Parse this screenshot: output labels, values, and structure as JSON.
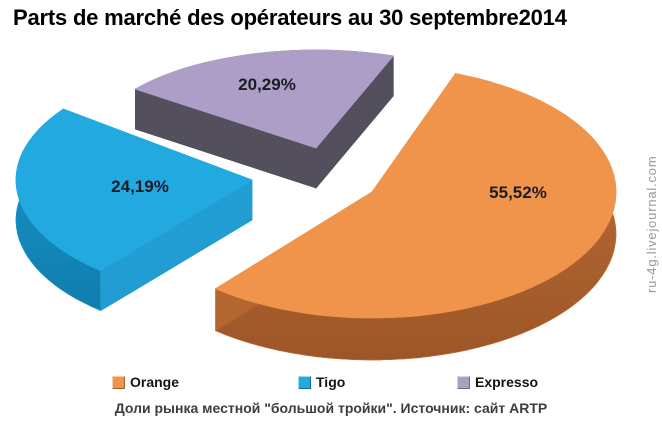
{
  "title": "Parts de marché des opérateurs au 30 septembre2014",
  "chart_data": {
    "type": "pie",
    "title": "Parts de marché des opérateurs au 30 septembre2014",
    "unit": "%",
    "exploded": true,
    "style": "3d",
    "start_angle_deg": 20,
    "legend_position": "bottom",
    "slices": [
      {
        "label": "Orange",
        "value": 55.52,
        "display": "55,52%",
        "color": "#F0944B",
        "side_top": "#C0733A",
        "side_bottom": "#9D5628",
        "cut_color": "#B4662F"
      },
      {
        "label": "Tigo",
        "value": 24.19,
        "display": "24,19%",
        "color": "#22A9E0",
        "side_top": "#1B96CB",
        "side_bottom": "#107DAE",
        "cut_color": "#219DD3"
      },
      {
        "label": "Expresso",
        "value": 20.29,
        "display": "20,29%",
        "color": "#AC9EC6",
        "side_top": "#5A5664",
        "side_bottom": "#4E4A58",
        "cut_color": "#534F5D"
      }
    ]
  },
  "caption": "Доли рынка местной \"большой тройки\". Источник: сайт ARTP",
  "watermark": "ru-4g.livejournal.com"
}
